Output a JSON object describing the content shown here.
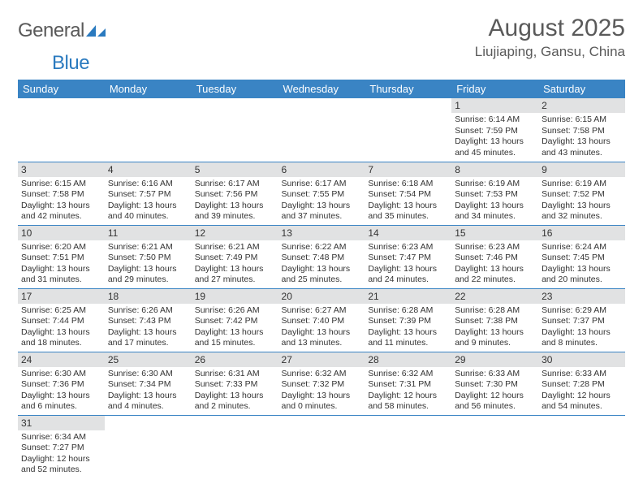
{
  "logo": {
    "text_main": "General",
    "text_accent": "Blue"
  },
  "title": {
    "month": "August 2025",
    "location": "Liujiaping, Gansu, China"
  },
  "colors": {
    "header_bg": "#3a84c4",
    "header_text": "#ffffff",
    "daynum_bg": "#e1e2e3",
    "rule": "#3a84c4",
    "logo_gray": "#5a5a5a",
    "logo_blue": "#2a7abf"
  },
  "weekdays": [
    "Sunday",
    "Monday",
    "Tuesday",
    "Wednesday",
    "Thursday",
    "Friday",
    "Saturday"
  ],
  "grid": [
    [
      {
        "day": "",
        "lines": []
      },
      {
        "day": "",
        "lines": []
      },
      {
        "day": "",
        "lines": []
      },
      {
        "day": "",
        "lines": []
      },
      {
        "day": "",
        "lines": []
      },
      {
        "day": "1",
        "lines": [
          "Sunrise: 6:14 AM",
          "Sunset: 7:59 PM",
          "Daylight: 13 hours and 45 minutes."
        ]
      },
      {
        "day": "2",
        "lines": [
          "Sunrise: 6:15 AM",
          "Sunset: 7:58 PM",
          "Daylight: 13 hours and 43 minutes."
        ]
      }
    ],
    [
      {
        "day": "3",
        "lines": [
          "Sunrise: 6:15 AM",
          "Sunset: 7:58 PM",
          "Daylight: 13 hours and 42 minutes."
        ]
      },
      {
        "day": "4",
        "lines": [
          "Sunrise: 6:16 AM",
          "Sunset: 7:57 PM",
          "Daylight: 13 hours and 40 minutes."
        ]
      },
      {
        "day": "5",
        "lines": [
          "Sunrise: 6:17 AM",
          "Sunset: 7:56 PM",
          "Daylight: 13 hours and 39 minutes."
        ]
      },
      {
        "day": "6",
        "lines": [
          "Sunrise: 6:17 AM",
          "Sunset: 7:55 PM",
          "Daylight: 13 hours and 37 minutes."
        ]
      },
      {
        "day": "7",
        "lines": [
          "Sunrise: 6:18 AM",
          "Sunset: 7:54 PM",
          "Daylight: 13 hours and 35 minutes."
        ]
      },
      {
        "day": "8",
        "lines": [
          "Sunrise: 6:19 AM",
          "Sunset: 7:53 PM",
          "Daylight: 13 hours and 34 minutes."
        ]
      },
      {
        "day": "9",
        "lines": [
          "Sunrise: 6:19 AM",
          "Sunset: 7:52 PM",
          "Daylight: 13 hours and 32 minutes."
        ]
      }
    ],
    [
      {
        "day": "10",
        "lines": [
          "Sunrise: 6:20 AM",
          "Sunset: 7:51 PM",
          "Daylight: 13 hours and 31 minutes."
        ]
      },
      {
        "day": "11",
        "lines": [
          "Sunrise: 6:21 AM",
          "Sunset: 7:50 PM",
          "Daylight: 13 hours and 29 minutes."
        ]
      },
      {
        "day": "12",
        "lines": [
          "Sunrise: 6:21 AM",
          "Sunset: 7:49 PM",
          "Daylight: 13 hours and 27 minutes."
        ]
      },
      {
        "day": "13",
        "lines": [
          "Sunrise: 6:22 AM",
          "Sunset: 7:48 PM",
          "Daylight: 13 hours and 25 minutes."
        ]
      },
      {
        "day": "14",
        "lines": [
          "Sunrise: 6:23 AM",
          "Sunset: 7:47 PM",
          "Daylight: 13 hours and 24 minutes."
        ]
      },
      {
        "day": "15",
        "lines": [
          "Sunrise: 6:23 AM",
          "Sunset: 7:46 PM",
          "Daylight: 13 hours and 22 minutes."
        ]
      },
      {
        "day": "16",
        "lines": [
          "Sunrise: 6:24 AM",
          "Sunset: 7:45 PM",
          "Daylight: 13 hours and 20 minutes."
        ]
      }
    ],
    [
      {
        "day": "17",
        "lines": [
          "Sunrise: 6:25 AM",
          "Sunset: 7:44 PM",
          "Daylight: 13 hours and 18 minutes."
        ]
      },
      {
        "day": "18",
        "lines": [
          "Sunrise: 6:26 AM",
          "Sunset: 7:43 PM",
          "Daylight: 13 hours and 17 minutes."
        ]
      },
      {
        "day": "19",
        "lines": [
          "Sunrise: 6:26 AM",
          "Sunset: 7:42 PM",
          "Daylight: 13 hours and 15 minutes."
        ]
      },
      {
        "day": "20",
        "lines": [
          "Sunrise: 6:27 AM",
          "Sunset: 7:40 PM",
          "Daylight: 13 hours and 13 minutes."
        ]
      },
      {
        "day": "21",
        "lines": [
          "Sunrise: 6:28 AM",
          "Sunset: 7:39 PM",
          "Daylight: 13 hours and 11 minutes."
        ]
      },
      {
        "day": "22",
        "lines": [
          "Sunrise: 6:28 AM",
          "Sunset: 7:38 PM",
          "Daylight: 13 hours and 9 minutes."
        ]
      },
      {
        "day": "23",
        "lines": [
          "Sunrise: 6:29 AM",
          "Sunset: 7:37 PM",
          "Daylight: 13 hours and 8 minutes."
        ]
      }
    ],
    [
      {
        "day": "24",
        "lines": [
          "Sunrise: 6:30 AM",
          "Sunset: 7:36 PM",
          "Daylight: 13 hours and 6 minutes."
        ]
      },
      {
        "day": "25",
        "lines": [
          "Sunrise: 6:30 AM",
          "Sunset: 7:34 PM",
          "Daylight: 13 hours and 4 minutes."
        ]
      },
      {
        "day": "26",
        "lines": [
          "Sunrise: 6:31 AM",
          "Sunset: 7:33 PM",
          "Daylight: 13 hours and 2 minutes."
        ]
      },
      {
        "day": "27",
        "lines": [
          "Sunrise: 6:32 AM",
          "Sunset: 7:32 PM",
          "Daylight: 13 hours and 0 minutes."
        ]
      },
      {
        "day": "28",
        "lines": [
          "Sunrise: 6:32 AM",
          "Sunset: 7:31 PM",
          "Daylight: 12 hours and 58 minutes."
        ]
      },
      {
        "day": "29",
        "lines": [
          "Sunrise: 6:33 AM",
          "Sunset: 7:30 PM",
          "Daylight: 12 hours and 56 minutes."
        ]
      },
      {
        "day": "30",
        "lines": [
          "Sunrise: 6:33 AM",
          "Sunset: 7:28 PM",
          "Daylight: 12 hours and 54 minutes."
        ]
      }
    ],
    [
      {
        "day": "31",
        "lines": [
          "Sunrise: 6:34 AM",
          "Sunset: 7:27 PM",
          "Daylight: 12 hours and 52 minutes."
        ]
      },
      {
        "day": "",
        "lines": []
      },
      {
        "day": "",
        "lines": []
      },
      {
        "day": "",
        "lines": []
      },
      {
        "day": "",
        "lines": []
      },
      {
        "day": "",
        "lines": []
      },
      {
        "day": "",
        "lines": []
      }
    ]
  ]
}
